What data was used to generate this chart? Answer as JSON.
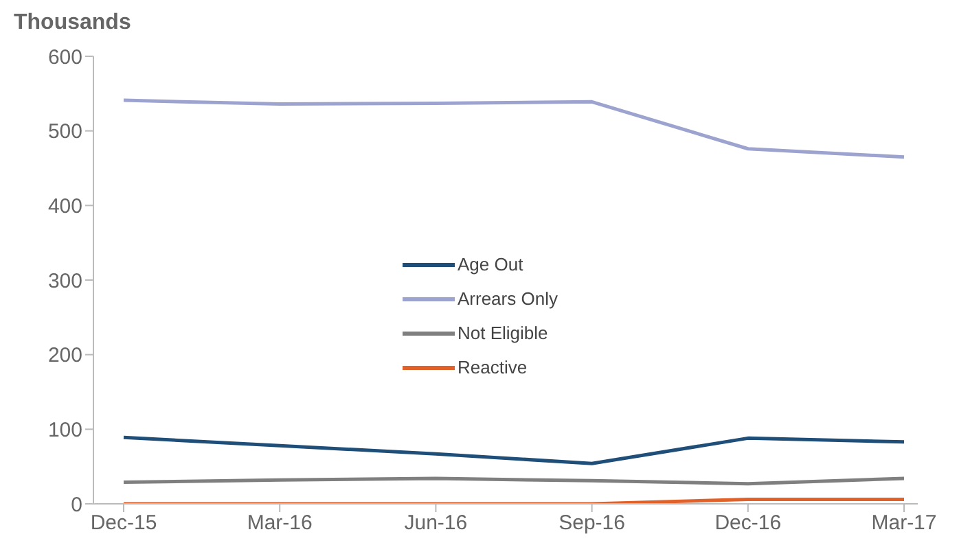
{
  "chart_data": {
    "type": "line",
    "ylabel": "Thousands",
    "categories": [
      "Dec-15",
      "Mar-16",
      "Jun-16",
      "Sep-16",
      "Dec-16",
      "Mar-17"
    ],
    "series": [
      {
        "name": "Age Out",
        "color": "#1f4e79",
        "values": [
          89,
          78,
          67,
          54,
          88,
          83
        ]
      },
      {
        "name": "Arrears Only",
        "color": "#9da3cf",
        "values": [
          541,
          536,
          537,
          539,
          476,
          465
        ]
      },
      {
        "name": "Not Eligible",
        "color": "#7f7f7f",
        "values": [
          29,
          32,
          34,
          31,
          27,
          34
        ]
      },
      {
        "name": "Reactive",
        "color": "#e0622a",
        "values": [
          0,
          0,
          0,
          0,
          6,
          6
        ]
      }
    ],
    "ylim": [
      0,
      600
    ],
    "yticks": [
      0,
      100,
      200,
      300,
      400,
      500,
      600
    ],
    "grid": false,
    "legend": "center",
    "marker": "none",
    "line_style": "solid"
  }
}
